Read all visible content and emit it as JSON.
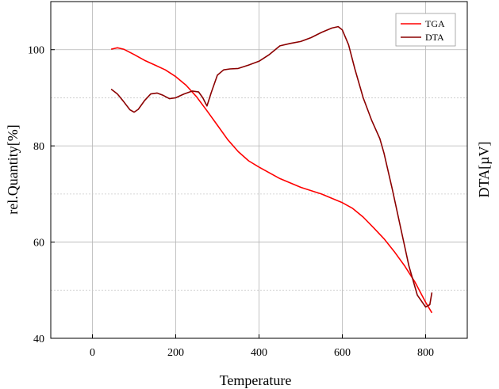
{
  "chart_data": {
    "type": "line",
    "xlabel": "Temperature",
    "ylabel": "rel.Quantity[%]",
    "y2label": "DTA[µV]",
    "xlim": [
      -100,
      900
    ],
    "ylim": [
      40,
      110
    ],
    "xticks": [
      0,
      200,
      400,
      600,
      800
    ],
    "yticks": [
      40,
      60,
      80,
      100
    ],
    "grid": true,
    "legend_position": "top-right",
    "series": [
      {
        "name": "TGA",
        "color": "#ff0000",
        "axis": "left",
        "x": [
          45,
          60,
          75,
          100,
          125,
          150,
          175,
          200,
          225,
          250,
          275,
          300,
          325,
          350,
          375,
          400,
          450,
          500,
          550,
          600,
          625,
          650,
          675,
          700,
          725,
          750,
          775,
          800,
          815
        ],
        "y": [
          100.1,
          100.4,
          100.1,
          99.0,
          97.8,
          96.8,
          95.8,
          94.4,
          92.6,
          90.2,
          87.3,
          84.3,
          81.3,
          78.8,
          76.9,
          75.6,
          73.2,
          71.4,
          70.0,
          68.2,
          67.0,
          65.2,
          63.0,
          60.7,
          58.0,
          55.0,
          51.6,
          47.5,
          45.3
        ]
      },
      {
        "name": "DTA",
        "color": "#8b0000",
        "axis": "right",
        "x": [
          45,
          60,
          75,
          90,
          100,
          110,
          125,
          140,
          155,
          170,
          185,
          200,
          220,
          240,
          255,
          265,
          275,
          285,
          300,
          315,
          330,
          350,
          375,
          400,
          425,
          450,
          475,
          500,
          525,
          550,
          575,
          590,
          600,
          615,
          630,
          650,
          670,
          690,
          700,
          720,
          740,
          760,
          780,
          800,
          810,
          815
        ],
        "y": [
          91.8,
          90.8,
          89.2,
          87.5,
          87.0,
          87.6,
          89.4,
          90.8,
          91.0,
          90.5,
          89.8,
          90.0,
          90.8,
          91.4,
          91.2,
          90.0,
          88.3,
          91.0,
          94.7,
          95.8,
          96.0,
          96.1,
          96.8,
          97.6,
          99.0,
          100.8,
          101.3,
          101.7,
          102.5,
          103.6,
          104.5,
          104.8,
          104.1,
          101.0,
          96.0,
          90.0,
          85.4,
          81.5,
          78.5,
          71.0,
          63.0,
          55.0,
          49.0,
          46.5,
          47.0,
          49.5
        ]
      }
    ]
  }
}
